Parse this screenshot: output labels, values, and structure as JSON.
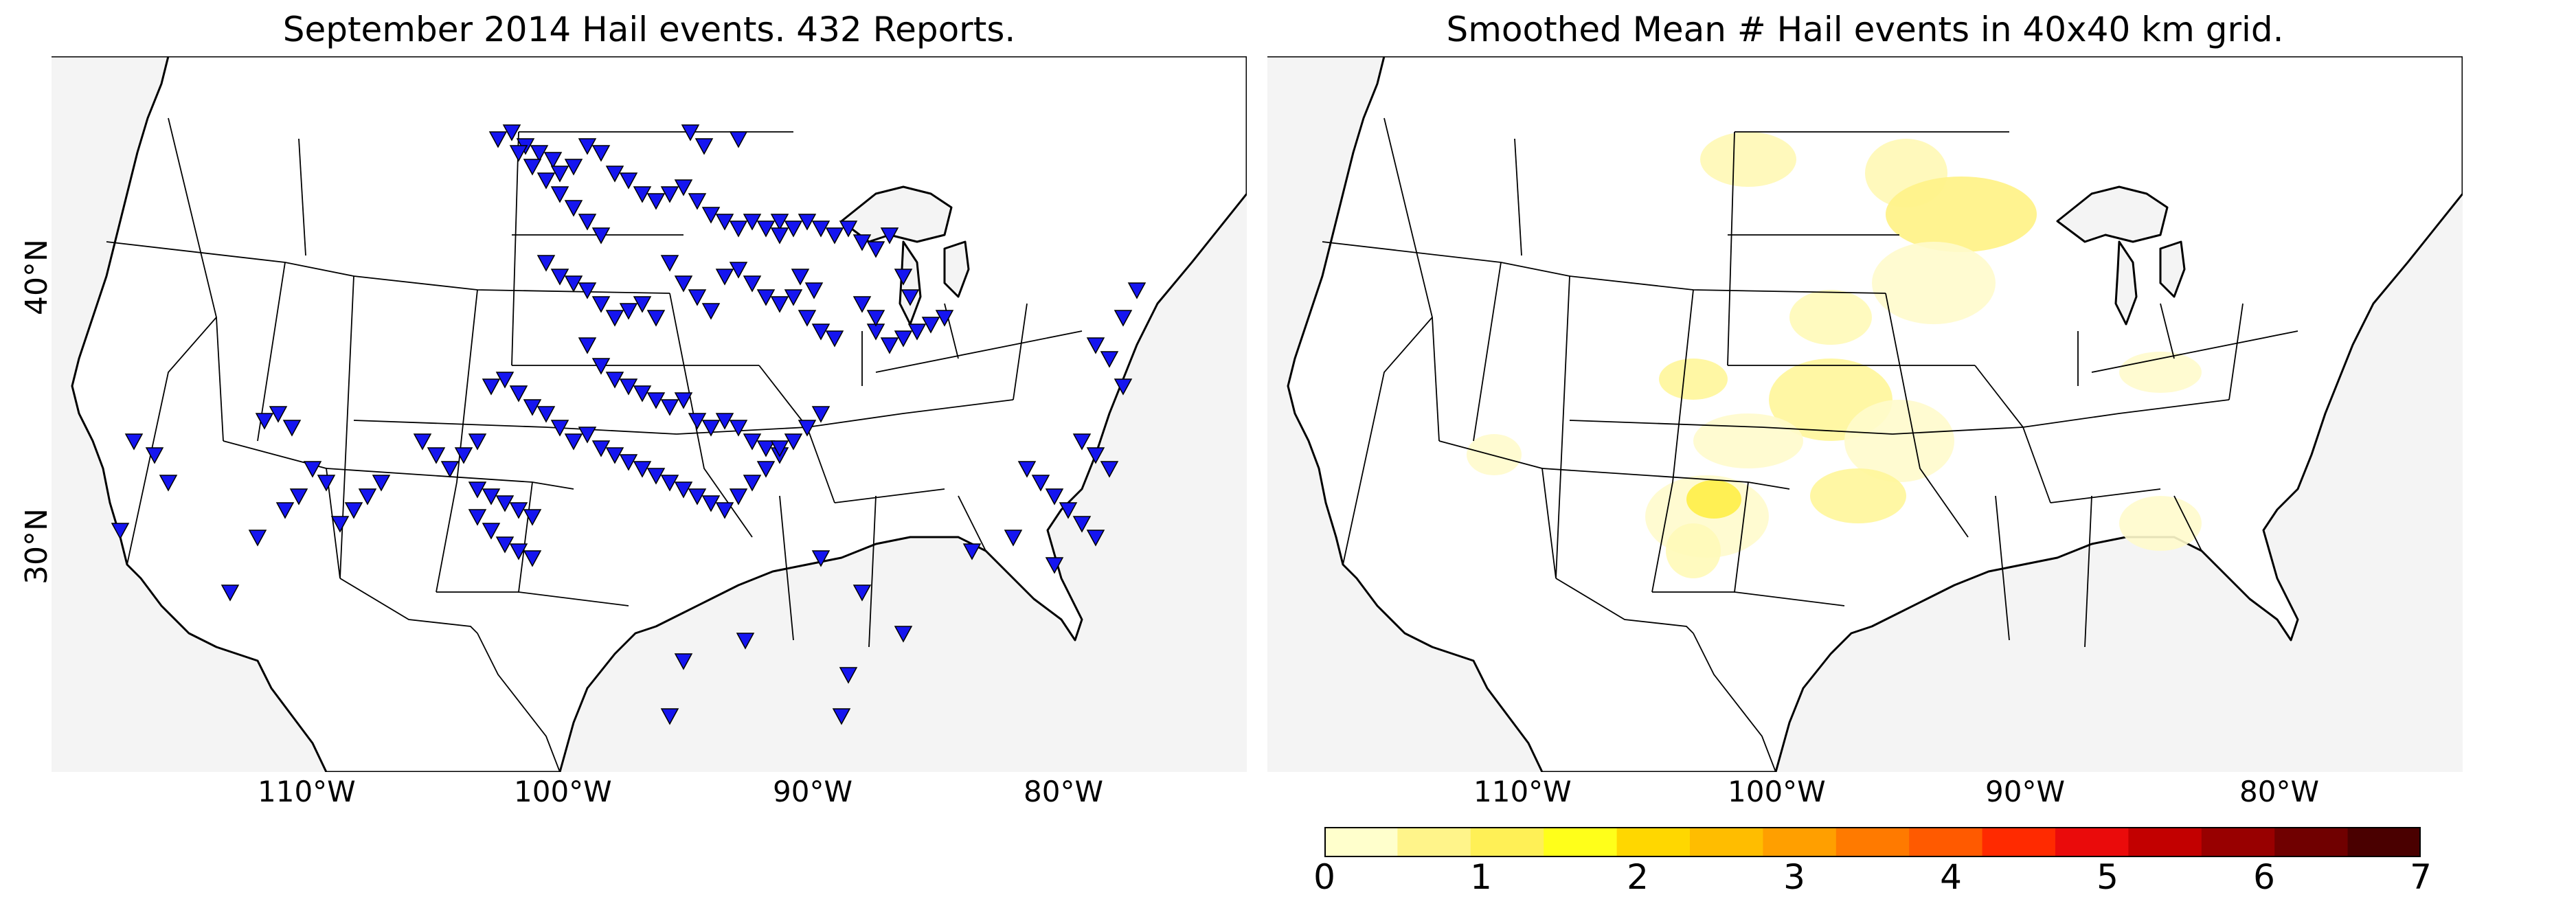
{
  "panels": {
    "left": {
      "title": "September 2014 Hail events. 432 Reports.",
      "lat_labels": [
        "40°N",
        "30°N"
      ],
      "lon_labels": [
        "110°W",
        "100°W",
        "90°W",
        "80°W"
      ]
    },
    "right": {
      "title": "Smoothed Mean # Hail events in 40x40 km grid.",
      "lon_labels": [
        "110°W",
        "100°W",
        "90°W",
        "80°W"
      ]
    }
  },
  "colorbar": {
    "ticks": [
      "0",
      "1",
      "2",
      "3",
      "4",
      "5",
      "6",
      "7"
    ],
    "colors": [
      "#ffffcc",
      "#fff48a",
      "#fff056",
      "#ffff1a",
      "#ffd700",
      "#ffbd00",
      "#ff9f00",
      "#ff7a00",
      "#ff5a00",
      "#ff2a00",
      "#ea0b0b",
      "#c20000",
      "#980000",
      "#700000",
      "#4a0000"
    ]
  },
  "style": {
    "marker_color": "#1515f0",
    "ocean_color": "#f4f4f4",
    "land_color": "#ffffff"
  }
}
